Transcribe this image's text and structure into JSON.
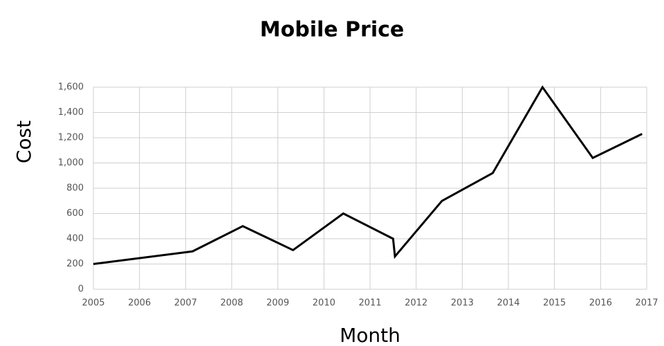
{
  "chart_data": {
    "type": "line",
    "title": "Mobile Price",
    "x_label": "Month",
    "y_label": "Cost",
    "x": [
      2005,
      2007.15,
      2008.24,
      2009.33,
      2010.42,
      2011.5,
      2011.54,
      2012.56,
      2013.66,
      2014.74,
      2015.83,
      2016.9
    ],
    "values": [
      200,
      300,
      500,
      310,
      600,
      400,
      260,
      700,
      920,
      1600,
      1040,
      1230
    ],
    "color": "#000000",
    "xlim": [
      2005,
      2017
    ],
    "xticks": [
      2005,
      2006,
      2007,
      2008,
      2009,
      2010,
      2011,
      2012,
      2013,
      2014,
      2015,
      2016,
      2017
    ],
    "ylim": [
      0,
      1600
    ],
    "yticks": [
      0,
      200,
      400,
      600,
      800,
      {
        "value": 1000,
        "label": "1,000"
      },
      {
        "value": 1200,
        "label": "1,200"
      },
      {
        "value": 1400,
        "label": "1,400"
      },
      {
        "value": 1600,
        "label": "1,600"
      }
    ],
    "grid": true
  }
}
